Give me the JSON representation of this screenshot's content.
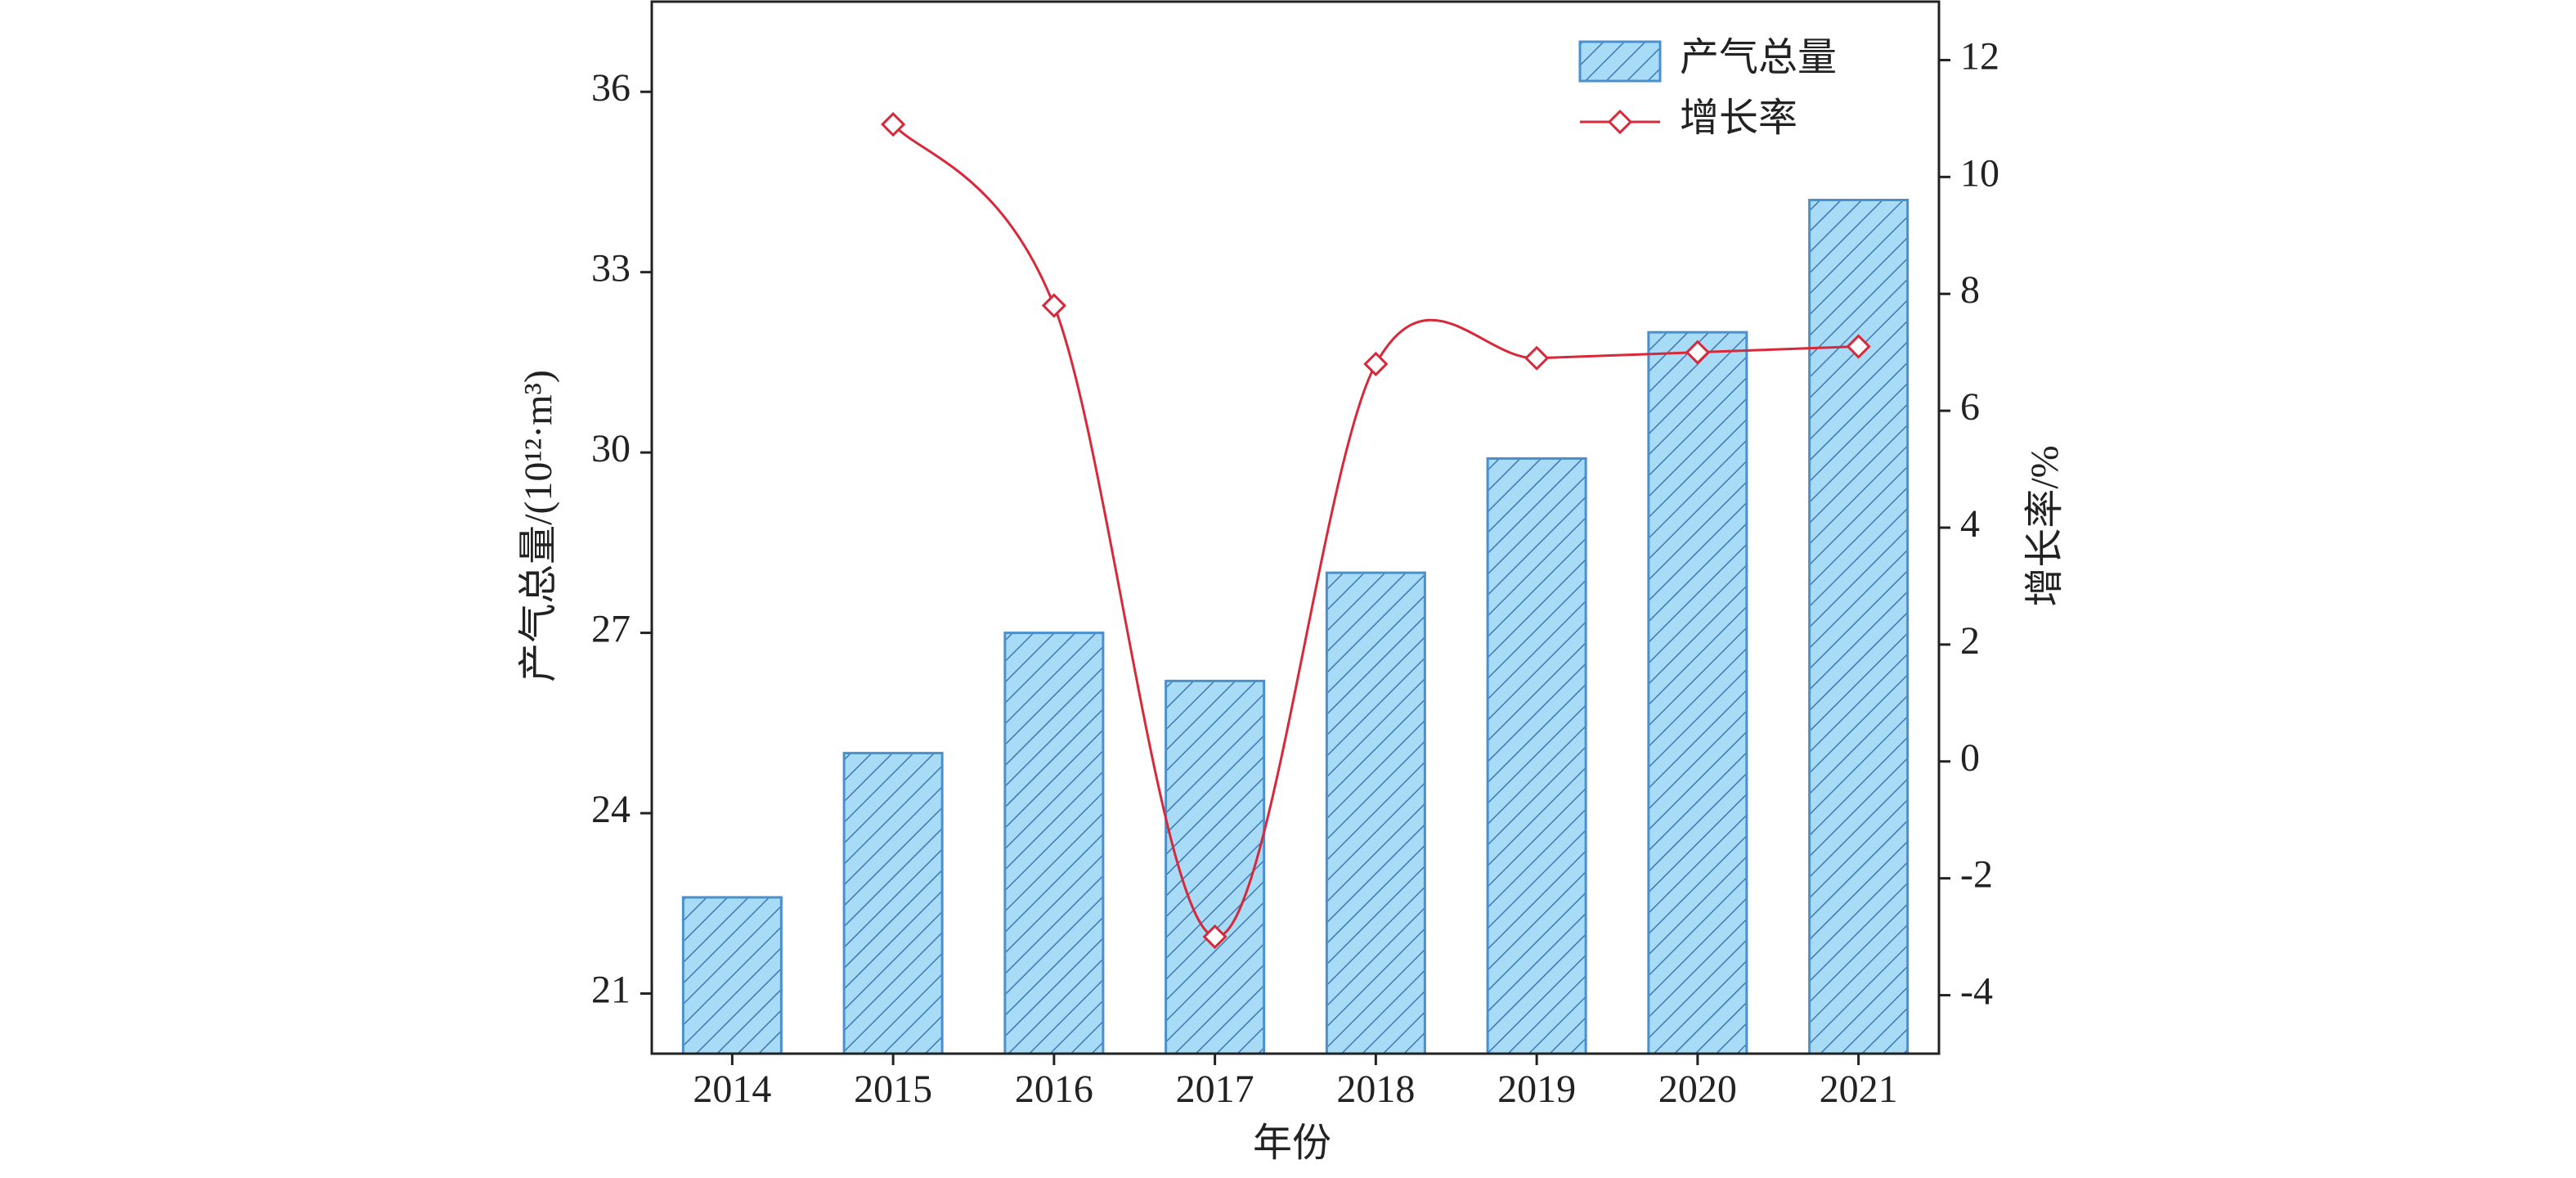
{
  "chart_data": {
    "type": "bar",
    "categories": [
      "2014",
      "2015",
      "2016",
      "2017",
      "2018",
      "2019",
      "2020",
      "2021"
    ],
    "series": [
      {
        "name": "产气总量",
        "type": "bar",
        "color": "#a8dcf6",
        "values": [
          22.6,
          25.0,
          27.0,
          26.2,
          28.0,
          29.9,
          32.0,
          34.2
        ]
      },
      {
        "name": "增长率",
        "type": "line",
        "axis": "y2",
        "color": "#d8283a",
        "values": [
          null,
          10.9,
          7.8,
          -3.0,
          6.8,
          6.9,
          7.0,
          7.1
        ]
      }
    ],
    "xlabel": "年份",
    "ylabel": "产气总量/(10¹²·m³)",
    "y2label": "增长率/%",
    "ylim": [
      20,
      37.5
    ],
    "yticks": [
      21,
      24,
      27,
      30,
      33,
      36
    ],
    "y2lim": [
      -5,
      13
    ],
    "y2ticks": [
      -4,
      -2,
      0,
      2,
      4,
      6,
      8,
      10,
      12
    ],
    "legend": "upper right"
  }
}
